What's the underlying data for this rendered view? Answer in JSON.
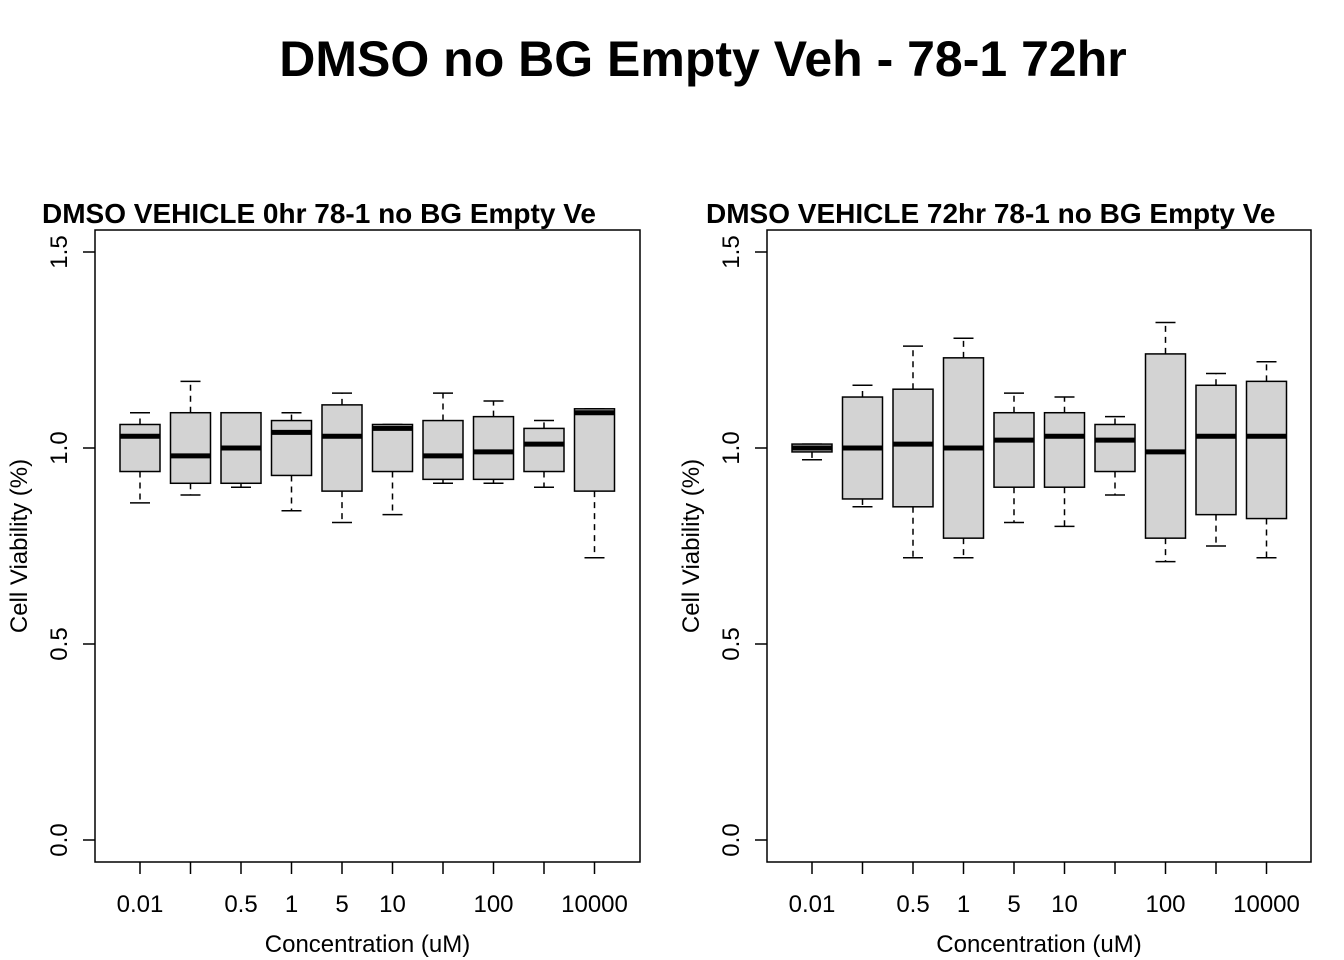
{
  "title": "DMSO no BG Empty Veh - 78-1 72hr",
  "chart_data": [
    {
      "type": "box",
      "title": "DMSO VEHICLE 0hr 78-1 no BG Empty Ve",
      "xlabel": "Concentration (uM)",
      "ylabel": "Cell Viability (%)",
      "ylim": [
        0,
        1.5
      ],
      "yticks": [
        "0.0",
        "0.5",
        "1.0",
        "1.5"
      ],
      "xtick_labels": [
        "0.01",
        "",
        "0.5",
        "1",
        "5",
        "10",
        "",
        "100",
        "",
        "10000"
      ],
      "box_fill": "#d3d3d3",
      "boxes": [
        {
          "min": 0.86,
          "q1": 0.94,
          "median": 1.03,
          "q3": 1.06,
          "max": 1.09
        },
        {
          "min": 0.88,
          "q1": 0.91,
          "median": 0.98,
          "q3": 1.09,
          "max": 1.17
        },
        {
          "min": 0.9,
          "q1": 0.91,
          "median": 1.0,
          "q3": 1.09,
          "max": 1.09
        },
        {
          "min": 0.84,
          "q1": 0.93,
          "median": 1.04,
          "q3": 1.07,
          "max": 1.09
        },
        {
          "min": 0.81,
          "q1": 0.89,
          "median": 1.03,
          "q3": 1.11,
          "max": 1.14
        },
        {
          "min": 0.83,
          "q1": 0.94,
          "median": 1.05,
          "q3": 1.06,
          "max": 1.06
        },
        {
          "min": 0.91,
          "q1": 0.92,
          "median": 0.98,
          "q3": 1.07,
          "max": 1.14
        },
        {
          "min": 0.91,
          "q1": 0.92,
          "median": 0.99,
          "q3": 1.08,
          "max": 1.12
        },
        {
          "min": 0.9,
          "q1": 0.94,
          "median": 1.01,
          "q3": 1.05,
          "max": 1.07
        },
        {
          "min": 0.72,
          "q1": 0.89,
          "median": 1.09,
          "q3": 1.1,
          "max": 1.1
        }
      ]
    },
    {
      "type": "box",
      "title": "DMSO VEHICLE 72hr 78-1 no BG Empty Ve",
      "xlabel": "Concentration (uM)",
      "ylabel": "Cell Viability (%)",
      "ylim": [
        0,
        1.5
      ],
      "yticks": [
        "0.0",
        "0.5",
        "1.0",
        "1.5"
      ],
      "xtick_labels": [
        "0.01",
        "",
        "0.5",
        "1",
        "5",
        "10",
        "",
        "100",
        "",
        "10000"
      ],
      "box_fill": "#d3d3d3",
      "boxes": [
        {
          "min": 0.97,
          "q1": 0.99,
          "median": 1.0,
          "q3": 1.01,
          "max": 1.01
        },
        {
          "min": 0.85,
          "q1": 0.87,
          "median": 1.0,
          "q3": 1.13,
          "max": 1.16
        },
        {
          "min": 0.72,
          "q1": 0.85,
          "median": 1.01,
          "q3": 1.15,
          "max": 1.26
        },
        {
          "min": 0.72,
          "q1": 0.77,
          "median": 1.0,
          "q3": 1.23,
          "max": 1.28
        },
        {
          "min": 0.81,
          "q1": 0.9,
          "median": 1.02,
          "q3": 1.09,
          "max": 1.14
        },
        {
          "min": 0.8,
          "q1": 0.9,
          "median": 1.03,
          "q3": 1.09,
          "max": 1.13
        },
        {
          "min": 0.88,
          "q1": 0.94,
          "median": 1.02,
          "q3": 1.06,
          "max": 1.08
        },
        {
          "min": 0.71,
          "q1": 0.77,
          "median": 0.99,
          "q3": 1.24,
          "max": 1.32
        },
        {
          "min": 0.75,
          "q1": 0.83,
          "median": 1.03,
          "q3": 1.16,
          "max": 1.19
        },
        {
          "min": 0.72,
          "q1": 0.82,
          "median": 1.03,
          "q3": 1.17,
          "max": 1.22
        }
      ]
    }
  ]
}
